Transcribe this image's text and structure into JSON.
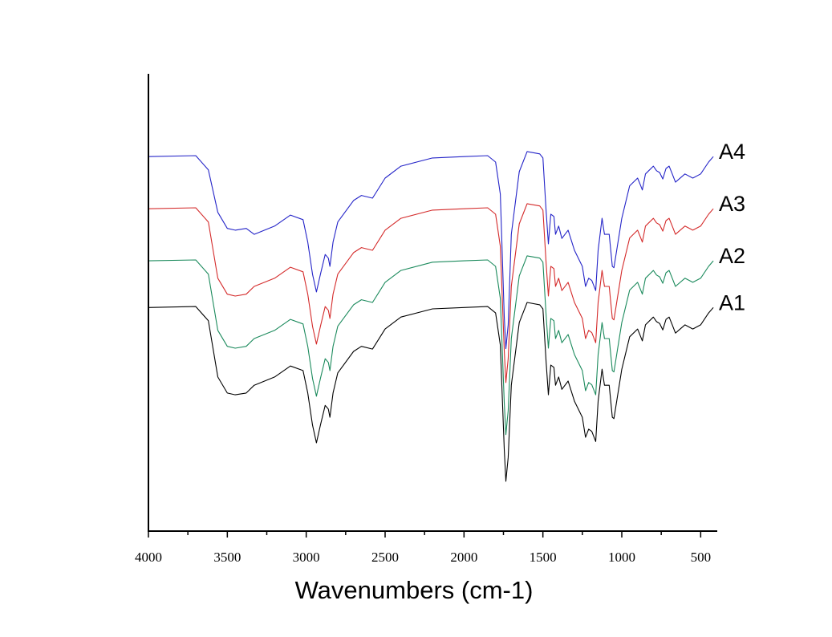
{
  "chart_data": {
    "type": "line",
    "title": "",
    "xlabel": "Wavenumbers (cm-1)",
    "ylabel": "",
    "xlim": [
      4000,
      400
    ],
    "ylim": [
      0,
      100
    ],
    "x_reversed": true,
    "grid": false,
    "xticks": [
      4000,
      3500,
      3000,
      2500,
      2000,
      1500,
      1000,
      500
    ],
    "xtick_labels": [
      "4000",
      "3500",
      "3000",
      "2500",
      "2000",
      "1500",
      "1000",
      "500"
    ],
    "minor_tick_step": 250,
    "y_axis_ticks_shown": false,
    "legend_placement": "inline labels at right end of each trace",
    "x": [
      4000,
      3700,
      3620,
      3560,
      3500,
      3450,
      3380,
      3330,
      3200,
      3100,
      3020,
      2990,
      2960,
      2935,
      2910,
      2880,
      2860,
      2850,
      2830,
      2800,
      2700,
      2650,
      2580,
      2500,
      2400,
      2200,
      2000,
      1850,
      1800,
      1770,
      1745,
      1735,
      1720,
      1700,
      1650,
      1600,
      1520,
      1500,
      1480,
      1465,
      1450,
      1430,
      1420,
      1400,
      1380,
      1340,
      1300,
      1250,
      1230,
      1210,
      1190,
      1165,
      1150,
      1125,
      1110,
      1080,
      1060,
      1050,
      1000,
      950,
      900,
      880,
      870,
      850,
      800,
      780,
      760,
      740,
      720,
      700,
      680,
      660,
      600,
      550,
      500,
      450,
      420
    ],
    "series": [
      {
        "name": "A1",
        "color": "#000000",
        "y": [
          48.9,
          49.1,
          46.0,
          33.7,
          30.2,
          29.8,
          30.2,
          31.9,
          33.7,
          36.1,
          35.1,
          30.2,
          23.2,
          19.3,
          23.2,
          27.5,
          26.7,
          24.9,
          30.2,
          34.6,
          39.3,
          40.4,
          39.8,
          44.2,
          46.8,
          48.6,
          48.9,
          49.1,
          47.7,
          40.7,
          17.9,
          10.9,
          16.1,
          31.9,
          45.6,
          50.0,
          49.5,
          48.6,
          37.2,
          29.8,
          36.3,
          35.8,
          31.9,
          33.7,
          31.0,
          32.8,
          28.4,
          24.9,
          20.5,
          22.3,
          21.8,
          19.6,
          28.4,
          35.4,
          31.9,
          31.9,
          24.9,
          24.6,
          35.4,
          42.5,
          44.2,
          42.5,
          41.6,
          45.1,
          46.8,
          45.8,
          45.4,
          44.0,
          46.3,
          46.8,
          45.1,
          43.3,
          45.1,
          44.2,
          45.1,
          47.7,
          48.9
        ]
      },
      {
        "name": "A2",
        "color": "#1b8a5c",
        "y": [
          59.1,
          59.3,
          56.2,
          43.9,
          40.4,
          40.0,
          40.4,
          42.1,
          43.9,
          46.3,
          45.3,
          40.4,
          33.4,
          29.5,
          33.4,
          37.7,
          36.9,
          35.1,
          40.4,
          44.8,
          49.5,
          50.6,
          50.0,
          54.4,
          57.0,
          58.8,
          59.1,
          59.3,
          57.9,
          50.9,
          28.1,
          21.1,
          26.3,
          42.1,
          55.8,
          60.2,
          59.7,
          58.8,
          47.4,
          40.0,
          46.5,
          46.0,
          42.1,
          43.9,
          41.2,
          43.0,
          38.6,
          35.1,
          30.7,
          32.5,
          32.0,
          29.8,
          38.6,
          45.6,
          42.1,
          42.1,
          35.1,
          34.8,
          45.6,
          52.7,
          54.4,
          52.7,
          51.8,
          55.3,
          57.0,
          56.0,
          55.6,
          54.2,
          56.5,
          57.0,
          55.3,
          53.5,
          55.3,
          54.4,
          55.3,
          57.9,
          59.1
        ]
      },
      {
        "name": "A3",
        "color": "#d42a2a",
        "y": [
          70.5,
          70.7,
          67.6,
          55.3,
          51.8,
          51.4,
          51.8,
          53.5,
          55.3,
          57.7,
          56.7,
          51.8,
          44.8,
          40.9,
          44.8,
          49.1,
          48.3,
          46.5,
          51.8,
          56.2,
          60.9,
          62.0,
          61.4,
          65.8,
          68.4,
          70.2,
          70.5,
          70.7,
          69.3,
          62.3,
          39.5,
          32.5,
          37.7,
          53.5,
          67.2,
          71.6,
          71.1,
          70.2,
          58.8,
          51.4,
          57.9,
          57.4,
          53.5,
          55.3,
          52.6,
          54.4,
          50.0,
          46.5,
          42.1,
          43.9,
          43.4,
          41.2,
          50.0,
          57.0,
          53.5,
          53.5,
          46.5,
          46.2,
          57.0,
          64.1,
          65.8,
          64.1,
          63.2,
          66.7,
          68.4,
          67.4,
          67.0,
          65.6,
          67.9,
          68.4,
          66.7,
          64.9,
          66.7,
          65.8,
          66.7,
          69.3,
          70.5
        ]
      },
      {
        "name": "A4",
        "color": "#2424c8",
        "y": [
          81.9,
          82.1,
          79.0,
          69.7,
          66.2,
          65.8,
          66.2,
          64.9,
          66.7,
          69.1,
          68.1,
          63.2,
          56.2,
          52.3,
          56.2,
          60.5,
          59.7,
          57.9,
          63.2,
          67.6,
          72.3,
          73.4,
          72.8,
          77.2,
          79.8,
          81.6,
          81.9,
          82.1,
          80.7,
          73.7,
          46.9,
          39.9,
          45.1,
          64.9,
          78.6,
          83.0,
          82.5,
          81.6,
          70.2,
          62.8,
          69.3,
          68.8,
          64.9,
          66.7,
          64.0,
          65.8,
          61.4,
          57.9,
          53.5,
          55.3,
          54.8,
          52.6,
          61.4,
          68.4,
          64.9,
          64.9,
          57.9,
          57.6,
          68.4,
          75.5,
          77.2,
          75.5,
          74.6,
          78.1,
          79.8,
          78.8,
          78.4,
          77.0,
          79.3,
          79.8,
          78.1,
          76.3,
          78.1,
          77.2,
          78.1,
          80.7,
          81.9
        ]
      }
    ]
  }
}
